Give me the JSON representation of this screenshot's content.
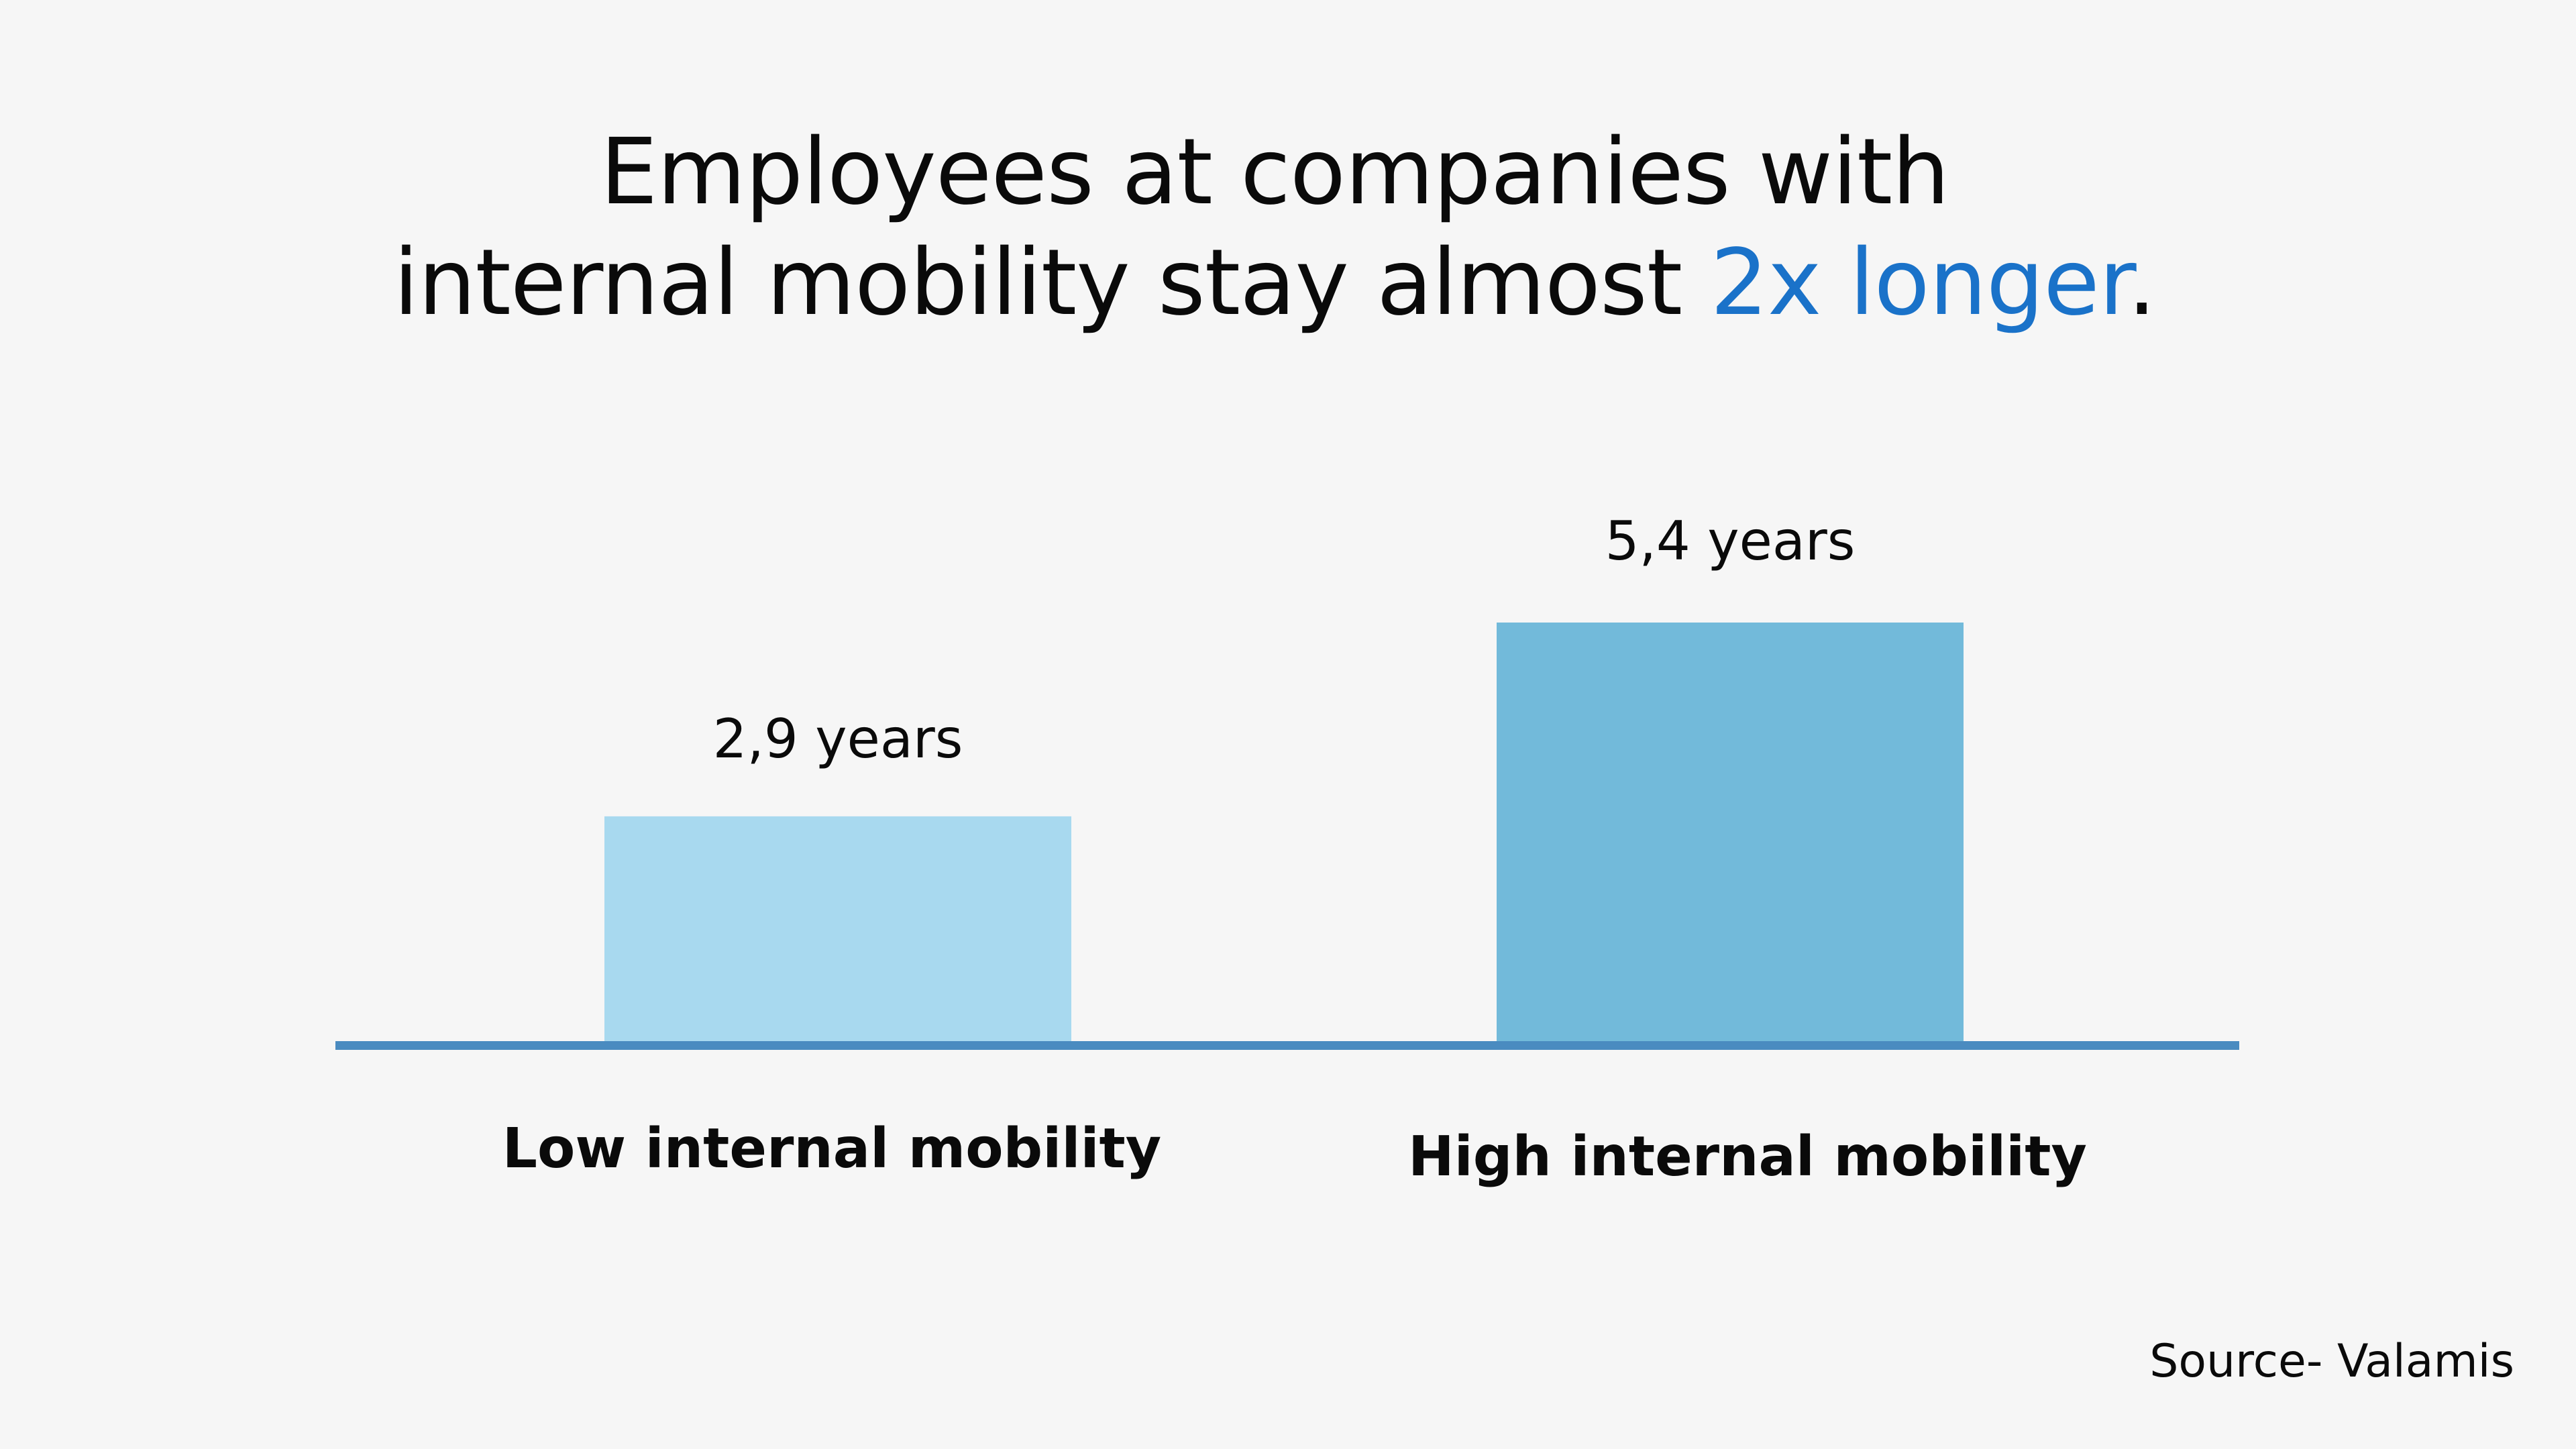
{
  "title": {
    "line1": "Employees at companies with",
    "line2_prefix": "internal mobility stay almost ",
    "line2_highlight": "2x longer",
    "line2_suffix": "."
  },
  "colors": {
    "accent": "#1a72c9",
    "background": "#f6f6f6",
    "axis": "#4a8bc0"
  },
  "chart_data": {
    "type": "bar",
    "categories": [
      "Low internal mobility",
      "High internal mobility"
    ],
    "values": [
      2.9,
      5.4
    ],
    "value_labels": [
      "2,9 years",
      "5,4 years"
    ],
    "colors": [
      "#a8d9ef",
      "#72bada"
    ],
    "unit": "years",
    "ylim": [
      0,
      5.4
    ],
    "grid": false,
    "legend": "none"
  },
  "source": "Source- Valamis"
}
